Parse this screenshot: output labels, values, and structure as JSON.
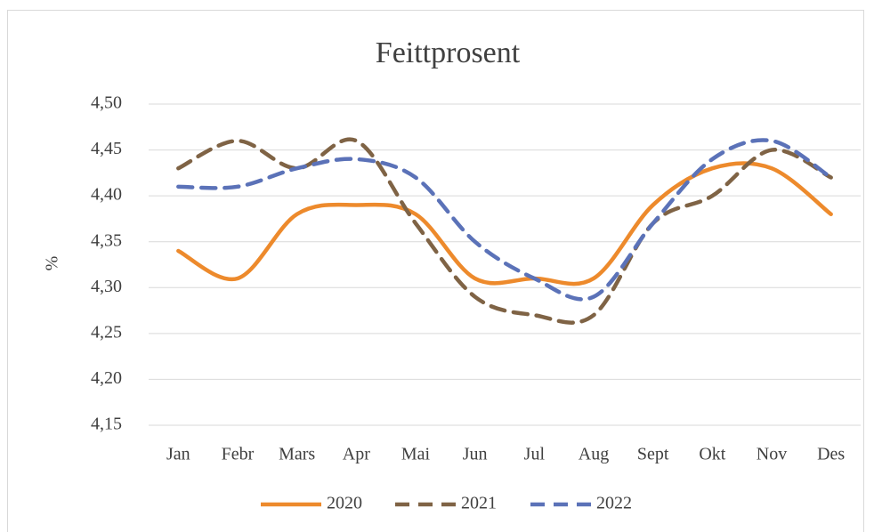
{
  "chart_data": {
    "type": "line",
    "title": "Feittprosent",
    "y_label": "%",
    "categories": [
      "Jan",
      "Febr",
      "Mars",
      "Apr",
      "Mai",
      "Jun",
      "Jul",
      "Aug",
      "Sept",
      "Okt",
      "Nov",
      "Des"
    ],
    "series": [
      {
        "name": "2020",
        "color": "#ed8a2c",
        "dashed": false,
        "values": [
          4.34,
          4.31,
          4.38,
          4.39,
          4.38,
          4.31,
          4.31,
          4.31,
          4.39,
          4.43,
          4.43,
          4.38
        ]
      },
      {
        "name": "2021",
        "color": "#7f6345",
        "dashed": true,
        "values": [
          4.43,
          4.46,
          4.43,
          4.46,
          4.37,
          4.29,
          4.27,
          4.27,
          4.37,
          4.4,
          4.45,
          4.42
        ]
      },
      {
        "name": "2022",
        "color": "#5b72b8",
        "dashed": true,
        "values": [
          4.41,
          4.41,
          4.43,
          4.44,
          4.42,
          4.35,
          4.31,
          4.29,
          4.37,
          4.44,
          4.46,
          4.42
        ]
      }
    ],
    "ylim": [
      4.15,
      4.5
    ],
    "yticks": [
      {
        "value": 4.15,
        "label": "4,15"
      },
      {
        "value": 4.2,
        "label": "4,20"
      },
      {
        "value": 4.25,
        "label": "4,25"
      },
      {
        "value": 4.3,
        "label": "4,30"
      },
      {
        "value": 4.35,
        "label": "4,35"
      },
      {
        "value": 4.4,
        "label": "4,40"
      },
      {
        "value": 4.45,
        "label": "4,45"
      },
      {
        "value": 4.5,
        "label": "4,50"
      }
    ],
    "grid": true,
    "smooth": true,
    "legend": "bottom"
  }
}
